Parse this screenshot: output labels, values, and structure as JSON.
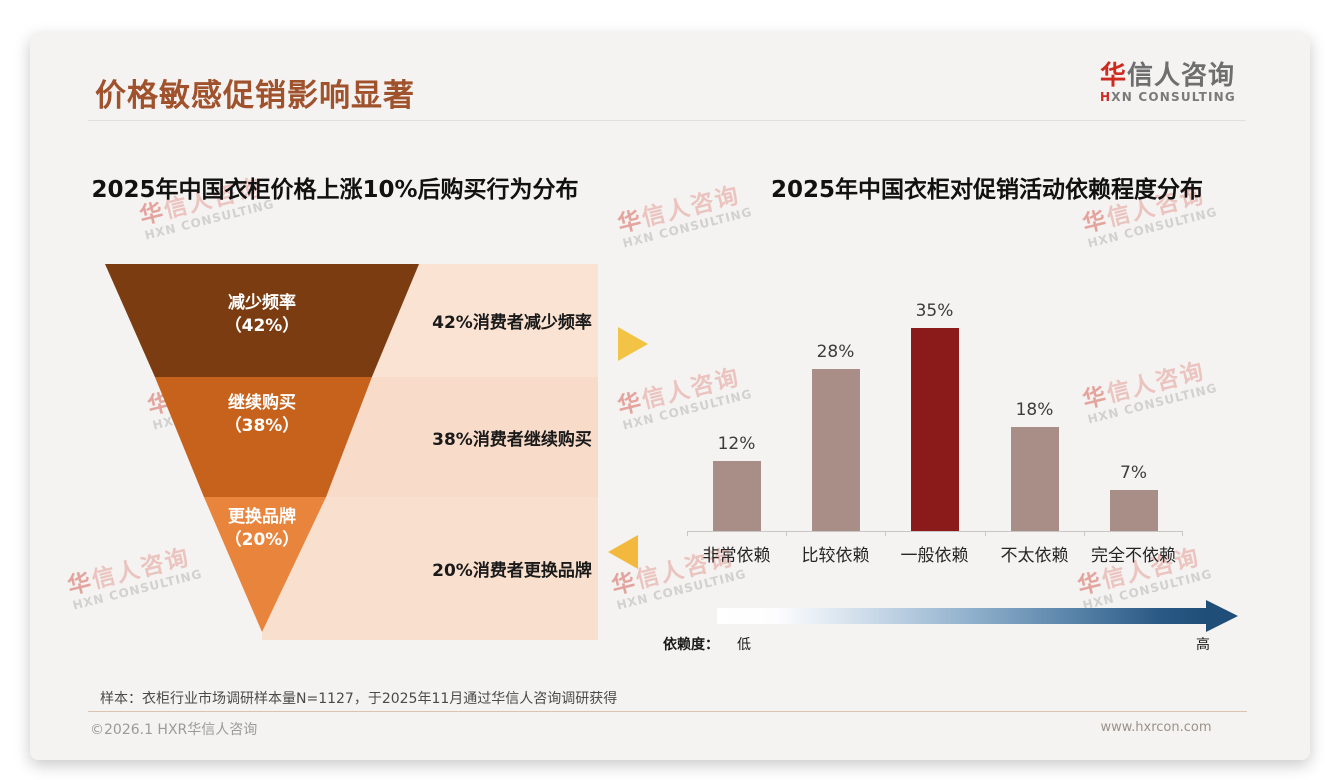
{
  "slide": {
    "title": "价格敏感促销影响显著",
    "logo": {
      "cn_first": "华",
      "cn_rest": "信人咨询",
      "en_first": "H",
      "en_rest": "XN CONSULTING"
    },
    "watermark": {
      "cn_first": "华",
      "cn_rest": "信人咨询",
      "en": "HXN CONSULTING"
    },
    "footer": {
      "sample_note": "样本：衣柜行业市场调研样本量N=1127，于2025年11月通过华信人咨询调研获得",
      "copyright": "©2026.1 HXR华信人咨询",
      "website": "www.hxrcon.com"
    }
  },
  "colors": {
    "title": "#A0522D",
    "card_bg": "#F4F3F1",
    "logo_red": "#CE2A20",
    "arrow_yellow": "#F3C346",
    "annotation_boxes": [
      "#FAE3D3",
      "#F8DBC9",
      "#F9DFCD"
    ],
    "footer_line": "#D9C3B3",
    "gradient_start": "#FFFFFF",
    "gradient_end": "#1F4E79"
  },
  "chart_data": [
    {
      "type": "funnel",
      "title": "2025年中国衣柜价格上涨10%后购买行为分布",
      "segments": [
        {
          "label": "减少频率",
          "value": 42,
          "value_label": "（42%）",
          "annotation": "42%消费者减少频率",
          "color": "#7A3C10"
        },
        {
          "label": "继续购买",
          "value": 38,
          "value_label": "（38%）",
          "annotation": "38%消费者继续购买",
          "color": "#C6621C"
        },
        {
          "label": "更换品牌",
          "value": 20,
          "value_label": "（20%）",
          "annotation": "20%消费者更换品牌",
          "color": "#E8843C"
        }
      ]
    },
    {
      "type": "bar",
      "title": "2025年中国衣柜对促销活动依赖程度分布",
      "categories": [
        "非常依赖",
        "比较依赖",
        "一般依赖",
        "不太依赖",
        "完全不依赖"
      ],
      "values": [
        12,
        28,
        35,
        18,
        7
      ],
      "value_labels": [
        "12%",
        "28%",
        "35%",
        "18%",
        "7%"
      ],
      "highlight_index": 2,
      "bar_color": "#A98D87",
      "highlight_color": "#8B1A1A",
      "ylim": [
        0,
        40
      ],
      "grid": false,
      "legend_position": "none",
      "dependency_scale": {
        "label": "依赖度：",
        "low": "低",
        "high": "高"
      }
    }
  ]
}
